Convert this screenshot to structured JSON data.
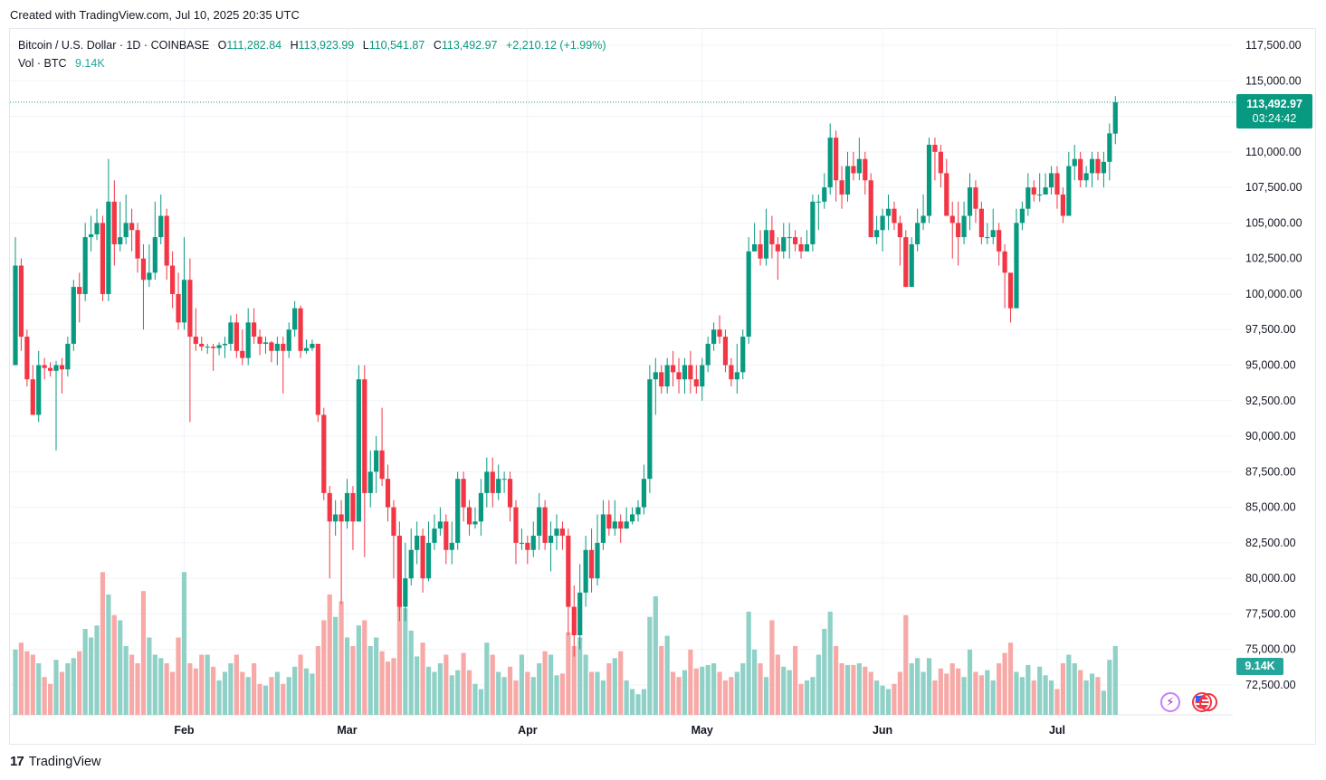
{
  "header": {
    "created_line": "Created with TradingView.com, Jul 10, 2025 20:35 UTC"
  },
  "legend": {
    "symbol": "Bitcoin / U.S. Dollar · 1D · COINBASE",
    "open_label": "O",
    "open": "111,282.84",
    "high_label": "H",
    "high": "113,923.99",
    "low_label": "L",
    "low": "110,541.87",
    "close_label": "C",
    "close": "113,492.97",
    "change": "+2,210.12 (+1.99%)",
    "vol_label": "Vol · BTC",
    "vol_value": "9.14K"
  },
  "price_badge": {
    "price": "113,492.97",
    "countdown": "03:24:42"
  },
  "vol_badge": "9.14K",
  "footer": {
    "brand": "TradingView",
    "logo": "17"
  },
  "icons": [
    "lightning-icon",
    "us-flag-icon"
  ],
  "colors": {
    "up": "#089981",
    "down": "#f23645",
    "vol_up": "#8fd1c7",
    "vol_down": "#f7a9a7",
    "grid": "#f0f3fa"
  },
  "chart_data": {
    "type": "candlestick",
    "title": "Bitcoin / U.S. Dollar · 1D · COINBASE",
    "ylim": [
      70000,
      118500
    ],
    "y_ticks": [
      "117,500.00",
      "115,000.00",
      "112,500.00",
      "110,000.00",
      "107,500.00",
      "105,000.00",
      "102,500.00",
      "100,000.00",
      "97,500.00",
      "95,000.00",
      "92,500.00",
      "90,000.00",
      "87,500.00",
      "85,000.00",
      "82,500.00",
      "80,000.00",
      "77,500.00",
      "75,000.00",
      "72,500.00"
    ],
    "x_ticks": [
      {
        "label": "Feb",
        "index": 29
      },
      {
        "label": "Mar",
        "index": 57
      },
      {
        "label": "Apr",
        "index": 88
      },
      {
        "label": "May",
        "index": 118
      },
      {
        "label": "Jun",
        "index": 149
      },
      {
        "label": "Jul",
        "index": 179
      }
    ],
    "last_price": 113492.97,
    "candles": [
      [
        95000,
        102000,
        104000,
        95000,
        38
      ],
      [
        102000,
        97000,
        102500,
        96000,
        42
      ],
      [
        97000,
        94000,
        97500,
        93500,
        37
      ],
      [
        94000,
        91500,
        95000,
        92000,
        35
      ],
      [
        91500,
        95000,
        96000,
        91000,
        30
      ],
      [
        95000,
        94800,
        95500,
        94000,
        22
      ],
      [
        94800,
        94600,
        95200,
        94200,
        18
      ],
      [
        94600,
        95000,
        95300,
        89000,
        32
      ],
      [
        95000,
        94700,
        95500,
        93000,
        25
      ],
      [
        94700,
        96500,
        97000,
        94200,
        30
      ],
      [
        96500,
        100500,
        101000,
        96000,
        33
      ],
      [
        100500,
        100000,
        101500,
        98000,
        37
      ],
      [
        100000,
        104000,
        105000,
        99500,
        50
      ],
      [
        104000,
        104200,
        105500,
        103000,
        45
      ],
      [
        104200,
        105000,
        106000,
        103800,
        52
      ],
      [
        105000,
        100000,
        105500,
        99500,
        83
      ],
      [
        100000,
        106500,
        109500,
        99500,
        70
      ],
      [
        106500,
        103500,
        108000,
        102000,
        58
      ],
      [
        103500,
        104000,
        106500,
        103000,
        55
      ],
      [
        104000,
        105000,
        107000,
        103500,
        40
      ],
      [
        105000,
        104500,
        106000,
        103000,
        35
      ],
      [
        104500,
        102500,
        105000,
        101500,
        30
      ],
      [
        102500,
        101000,
        103500,
        97500,
        72
      ],
      [
        101000,
        101500,
        103500,
        100500,
        45
      ],
      [
        101500,
        104000,
        106500,
        101000,
        35
      ],
      [
        104000,
        105500,
        107000,
        103500,
        33
      ],
      [
        105500,
        102000,
        106000,
        101000,
        30
      ],
      [
        102000,
        100000,
        103000,
        99000,
        25
      ],
      [
        100000,
        98000,
        101500,
        97500,
        45
      ],
      [
        98000,
        101000,
        104000,
        97500,
        83
      ],
      [
        101000,
        97000,
        102500,
        91000,
        30
      ],
      [
        97000,
        96500,
        99000,
        96000,
        27
      ],
      [
        96500,
        96300,
        97000,
        96000,
        35
      ],
      [
        96300,
        96300,
        96500,
        95800,
        35
      ],
      [
        96300,
        96200,
        96500,
        94600,
        28
      ],
      [
        96200,
        96400,
        96600,
        95700,
        20
      ],
      [
        96400,
        96500,
        97000,
        95500,
        25
      ],
      [
        96500,
        98000,
        98500,
        96000,
        30
      ],
      [
        98000,
        96000,
        98600,
        95500,
        35
      ],
      [
        96000,
        95500,
        97500,
        95000,
        25
      ],
      [
        95500,
        98000,
        99000,
        95000,
        22
      ],
      [
        98000,
        97000,
        99000,
        96500,
        30
      ],
      [
        97000,
        96500,
        97500,
        95700,
        18
      ],
      [
        96500,
        96600,
        97000,
        95800,
        17
      ],
      [
        96600,
        96000,
        96700,
        95200,
        22
      ],
      [
        96000,
        96500,
        97000,
        95000,
        25
      ],
      [
        96500,
        96000,
        97000,
        93000,
        18
      ],
      [
        96000,
        97500,
        98000,
        95500,
        22
      ],
      [
        97500,
        99000,
        99500,
        97000,
        28
      ],
      [
        99000,
        96000,
        99200,
        95500,
        35
      ],
      [
        96000,
        96200,
        96800,
        95800,
        27
      ],
      [
        96200,
        96500,
        96800,
        96000,
        24
      ],
      [
        96500,
        91500,
        96500,
        91000,
        40
      ],
      [
        91500,
        86000,
        92000,
        85500,
        55
      ],
      [
        86000,
        84000,
        86500,
        80000,
        70
      ],
      [
        84000,
        84500,
        85500,
        83000,
        57
      ],
      [
        84500,
        84000,
        85500,
        78200,
        66
      ],
      [
        84000,
        86000,
        87000,
        83500,
        45
      ],
      [
        86000,
        84000,
        86500,
        82000,
        40
      ],
      [
        84000,
        94000,
        95000,
        84000,
        52
      ],
      [
        94000,
        86000,
        95000,
        81500,
        55
      ],
      [
        86000,
        87500,
        89000,
        85000,
        40
      ],
      [
        87500,
        89000,
        90000,
        86000,
        45
      ],
      [
        89000,
        87000,
        92000,
        86500,
        37
      ],
      [
        87000,
        85000,
        88000,
        84000,
        31
      ],
      [
        85000,
        83000,
        85500,
        80000,
        33
      ],
      [
        83000,
        78000,
        84000,
        77000,
        70
      ],
      [
        78000,
        80000,
        82500,
        77000,
        62
      ],
      [
        80000,
        82000,
        83500,
        79500,
        49
      ],
      [
        82000,
        83000,
        84000,
        81000,
        34
      ],
      [
        83000,
        80000,
        83500,
        79000,
        42
      ],
      [
        80000,
        82500,
        84000,
        79800,
        28
      ],
      [
        82500,
        83500,
        84500,
        82000,
        25
      ],
      [
        83500,
        84000,
        85000,
        83000,
        30
      ],
      [
        84000,
        82000,
        84500,
        81000,
        35
      ],
      [
        82000,
        82500,
        84000,
        81000,
        23
      ],
      [
        82500,
        87000,
        87500,
        82000,
        26
      ],
      [
        87000,
        85000,
        87500,
        84000,
        36
      ],
      [
        85000,
        83800,
        85500,
        83000,
        26
      ],
      [
        83800,
        84000,
        85000,
        83500,
        18
      ],
      [
        84000,
        86000,
        87000,
        83000,
        15
      ],
      [
        86000,
        87500,
        88500,
        85000,
        42
      ],
      [
        87500,
        86000,
        88500,
        85000,
        35
      ],
      [
        86000,
        87000,
        88000,
        85500,
        25
      ],
      [
        87000,
        87000,
        87500,
        86000,
        22
      ],
      [
        87000,
        85000,
        87500,
        84000,
        28
      ],
      [
        85000,
        82500,
        85500,
        81000,
        20
      ],
      [
        82500,
        82500,
        83500,
        82000,
        35
      ],
      [
        82500,
        82000,
        83000,
        81000,
        25
      ],
      [
        82000,
        83000,
        84000,
        81500,
        22
      ],
      [
        83000,
        85000,
        86000,
        82000,
        30
      ],
      [
        85000,
        82500,
        85500,
        82000,
        37
      ],
      [
        82500,
        83000,
        84000,
        80500,
        35
      ],
      [
        83000,
        83500,
        84500,
        82000,
        23
      ],
      [
        83500,
        83000,
        84000,
        82000,
        24
      ],
      [
        83000,
        78000,
        83500,
        76000,
        48
      ],
      [
        78000,
        76000,
        79500,
        74500,
        40
      ],
      [
        76000,
        79000,
        81000,
        75000,
        45
      ],
      [
        79000,
        82000,
        83000,
        78000,
        35
      ],
      [
        82000,
        80000,
        83500,
        79000,
        25
      ],
      [
        80000,
        82500,
        84500,
        79500,
        25
      ],
      [
        82500,
        84500,
        85500,
        82000,
        20
      ],
      [
        84500,
        83500,
        85500,
        83000,
        30
      ],
      [
        83500,
        84000,
        85500,
        83000,
        33
      ],
      [
        84000,
        83500,
        84500,
        82500,
        37
      ],
      [
        83500,
        84000,
        85000,
        83500,
        20
      ],
      [
        84000,
        84500,
        85000,
        83800,
        15
      ],
      [
        84500,
        85000,
        85500,
        84000,
        12
      ],
      [
        85000,
        87000,
        88000,
        84500,
        15
      ],
      [
        87000,
        94000,
        95000,
        86000,
        57
      ],
      [
        94000,
        94500,
        95500,
        91500,
        69
      ],
      [
        94500,
        93500,
        95000,
        93000,
        40
      ],
      [
        93500,
        95000,
        95500,
        93000,
        46
      ],
      [
        95000,
        94500,
        96000,
        93500,
        25
      ],
      [
        94500,
        94000,
        95500,
        93000,
        22
      ],
      [
        94000,
        95000,
        95500,
        93000,
        26
      ],
      [
        95000,
        94000,
        96000,
        93000,
        38
      ],
      [
        94000,
        93500,
        95000,
        93000,
        27
      ],
      [
        93500,
        95000,
        95500,
        92500,
        28
      ],
      [
        95000,
        96500,
        97000,
        94500,
        29
      ],
      [
        96500,
        97500,
        98000,
        96000,
        30
      ],
      [
        97500,
        97000,
        98500,
        96500,
        25
      ],
      [
        97000,
        95000,
        97500,
        94500,
        20
      ],
      [
        95000,
        94000,
        95500,
        93500,
        22
      ],
      [
        94000,
        94500,
        96500,
        93000,
        25
      ],
      [
        94500,
        97000,
        97500,
        94000,
        30
      ],
      [
        97000,
        103000,
        104000,
        96500,
        60
      ],
      [
        103000,
        103500,
        105000,
        103000,
        38
      ],
      [
        103500,
        102500,
        104500,
        102000,
        30
      ],
      [
        102500,
        104500,
        106000,
        102000,
        22
      ],
      [
        104500,
        103500,
        105500,
        102500,
        55
      ],
      [
        103500,
        103000,
        104000,
        101000,
        35
      ],
      [
        103000,
        104000,
        105000,
        102500,
        28
      ],
      [
        104000,
        104000,
        105000,
        102500,
        26
      ],
      [
        104000,
        103500,
        104500,
        103000,
        40
      ],
      [
        103500,
        103000,
        104000,
        102500,
        18
      ],
      [
        103000,
        103500,
        104500,
        103000,
        20
      ],
      [
        103500,
        106500,
        107000,
        103000,
        22
      ],
      [
        106500,
        106500,
        107000,
        104500,
        35
      ],
      [
        106500,
        107500,
        108500,
        106000,
        50
      ],
      [
        107500,
        111000,
        112000,
        107000,
        60
      ],
      [
        111000,
        108000,
        111500,
        106500,
        40
      ],
      [
        108000,
        107000,
        109000,
        106000,
        30
      ],
      [
        107000,
        109000,
        110000,
        106500,
        29
      ],
      [
        109000,
        108500,
        110000,
        108000,
        29
      ],
      [
        108500,
        109500,
        111000,
        108000,
        30
      ],
      [
        109500,
        108000,
        110000,
        107000,
        28
      ],
      [
        108000,
        104000,
        108500,
        104000,
        25
      ],
      [
        104000,
        104500,
        105500,
        103500,
        20
      ],
      [
        104500,
        105500,
        106000,
        103000,
        17
      ],
      [
        105500,
        106000,
        107000,
        104500,
        15
      ],
      [
        106000,
        105000,
        106500,
        104500,
        18
      ],
      [
        105000,
        104000,
        105500,
        102000,
        25
      ],
      [
        104000,
        100500,
        104500,
        100500,
        58
      ],
      [
        100500,
        103500,
        104000,
        102500,
        30
      ],
      [
        103500,
        105000,
        106000,
        103000,
        33
      ],
      [
        105000,
        105500,
        107000,
        104500,
        25
      ],
      [
        105500,
        110500,
        111000,
        105000,
        33
      ],
      [
        110500,
        110000,
        111000,
        108000,
        20
      ],
      [
        110000,
        108500,
        110500,
        107500,
        27
      ],
      [
        108500,
        105500,
        109500,
        105500,
        24
      ],
      [
        105500,
        105000,
        106500,
        102500,
        30
      ],
      [
        105000,
        104000,
        106500,
        102000,
        27
      ],
      [
        104000,
        105500,
        106500,
        103500,
        22
      ],
      [
        105500,
        107500,
        108500,
        104500,
        38
      ],
      [
        107500,
        106000,
        108000,
        105000,
        25
      ],
      [
        106000,
        104000,
        106500,
        103500,
        23
      ],
      [
        104000,
        104000,
        105000,
        103500,
        26
      ],
      [
        104000,
        104500,
        106000,
        103500,
        20
      ],
      [
        104500,
        103000,
        105000,
        102000,
        30
      ],
      [
        103000,
        101500,
        103500,
        99000,
        36
      ],
      [
        101500,
        99000,
        101500,
        98000,
        42
      ],
      [
        99000,
        105000,
        106000,
        99000,
        25
      ],
      [
        105000,
        106000,
        106500,
        104500,
        22
      ],
      [
        106000,
        107500,
        108500,
        105500,
        29
      ],
      [
        107500,
        107000,
        108000,
        106500,
        20
      ],
      [
        107000,
        107000,
        108500,
        106500,
        28
      ],
      [
        107000,
        107500,
        108500,
        107000,
        23
      ],
      [
        107500,
        108500,
        109000,
        107000,
        20
      ],
      [
        108500,
        107000,
        109000,
        106000,
        15
      ],
      [
        107000,
        105500,
        107500,
        105000,
        30
      ],
      [
        105500,
        109000,
        110000,
        105500,
        35
      ],
      [
        109000,
        109500,
        110500,
        108000,
        30
      ],
      [
        109500,
        108000,
        110000,
        107500,
        26
      ],
      [
        108000,
        108500,
        109000,
        107500,
        20
      ],
      [
        108500,
        109500,
        110000,
        107500,
        24
      ],
      [
        109500,
        108500,
        110000,
        108000,
        22
      ],
      [
        108500,
        109300,
        110000,
        107500,
        14
      ],
      [
        109300,
        111300,
        112000,
        108000,
        32
      ],
      [
        111282.84,
        113492.97,
        113923.99,
        110541.87,
        40
      ]
    ]
  }
}
